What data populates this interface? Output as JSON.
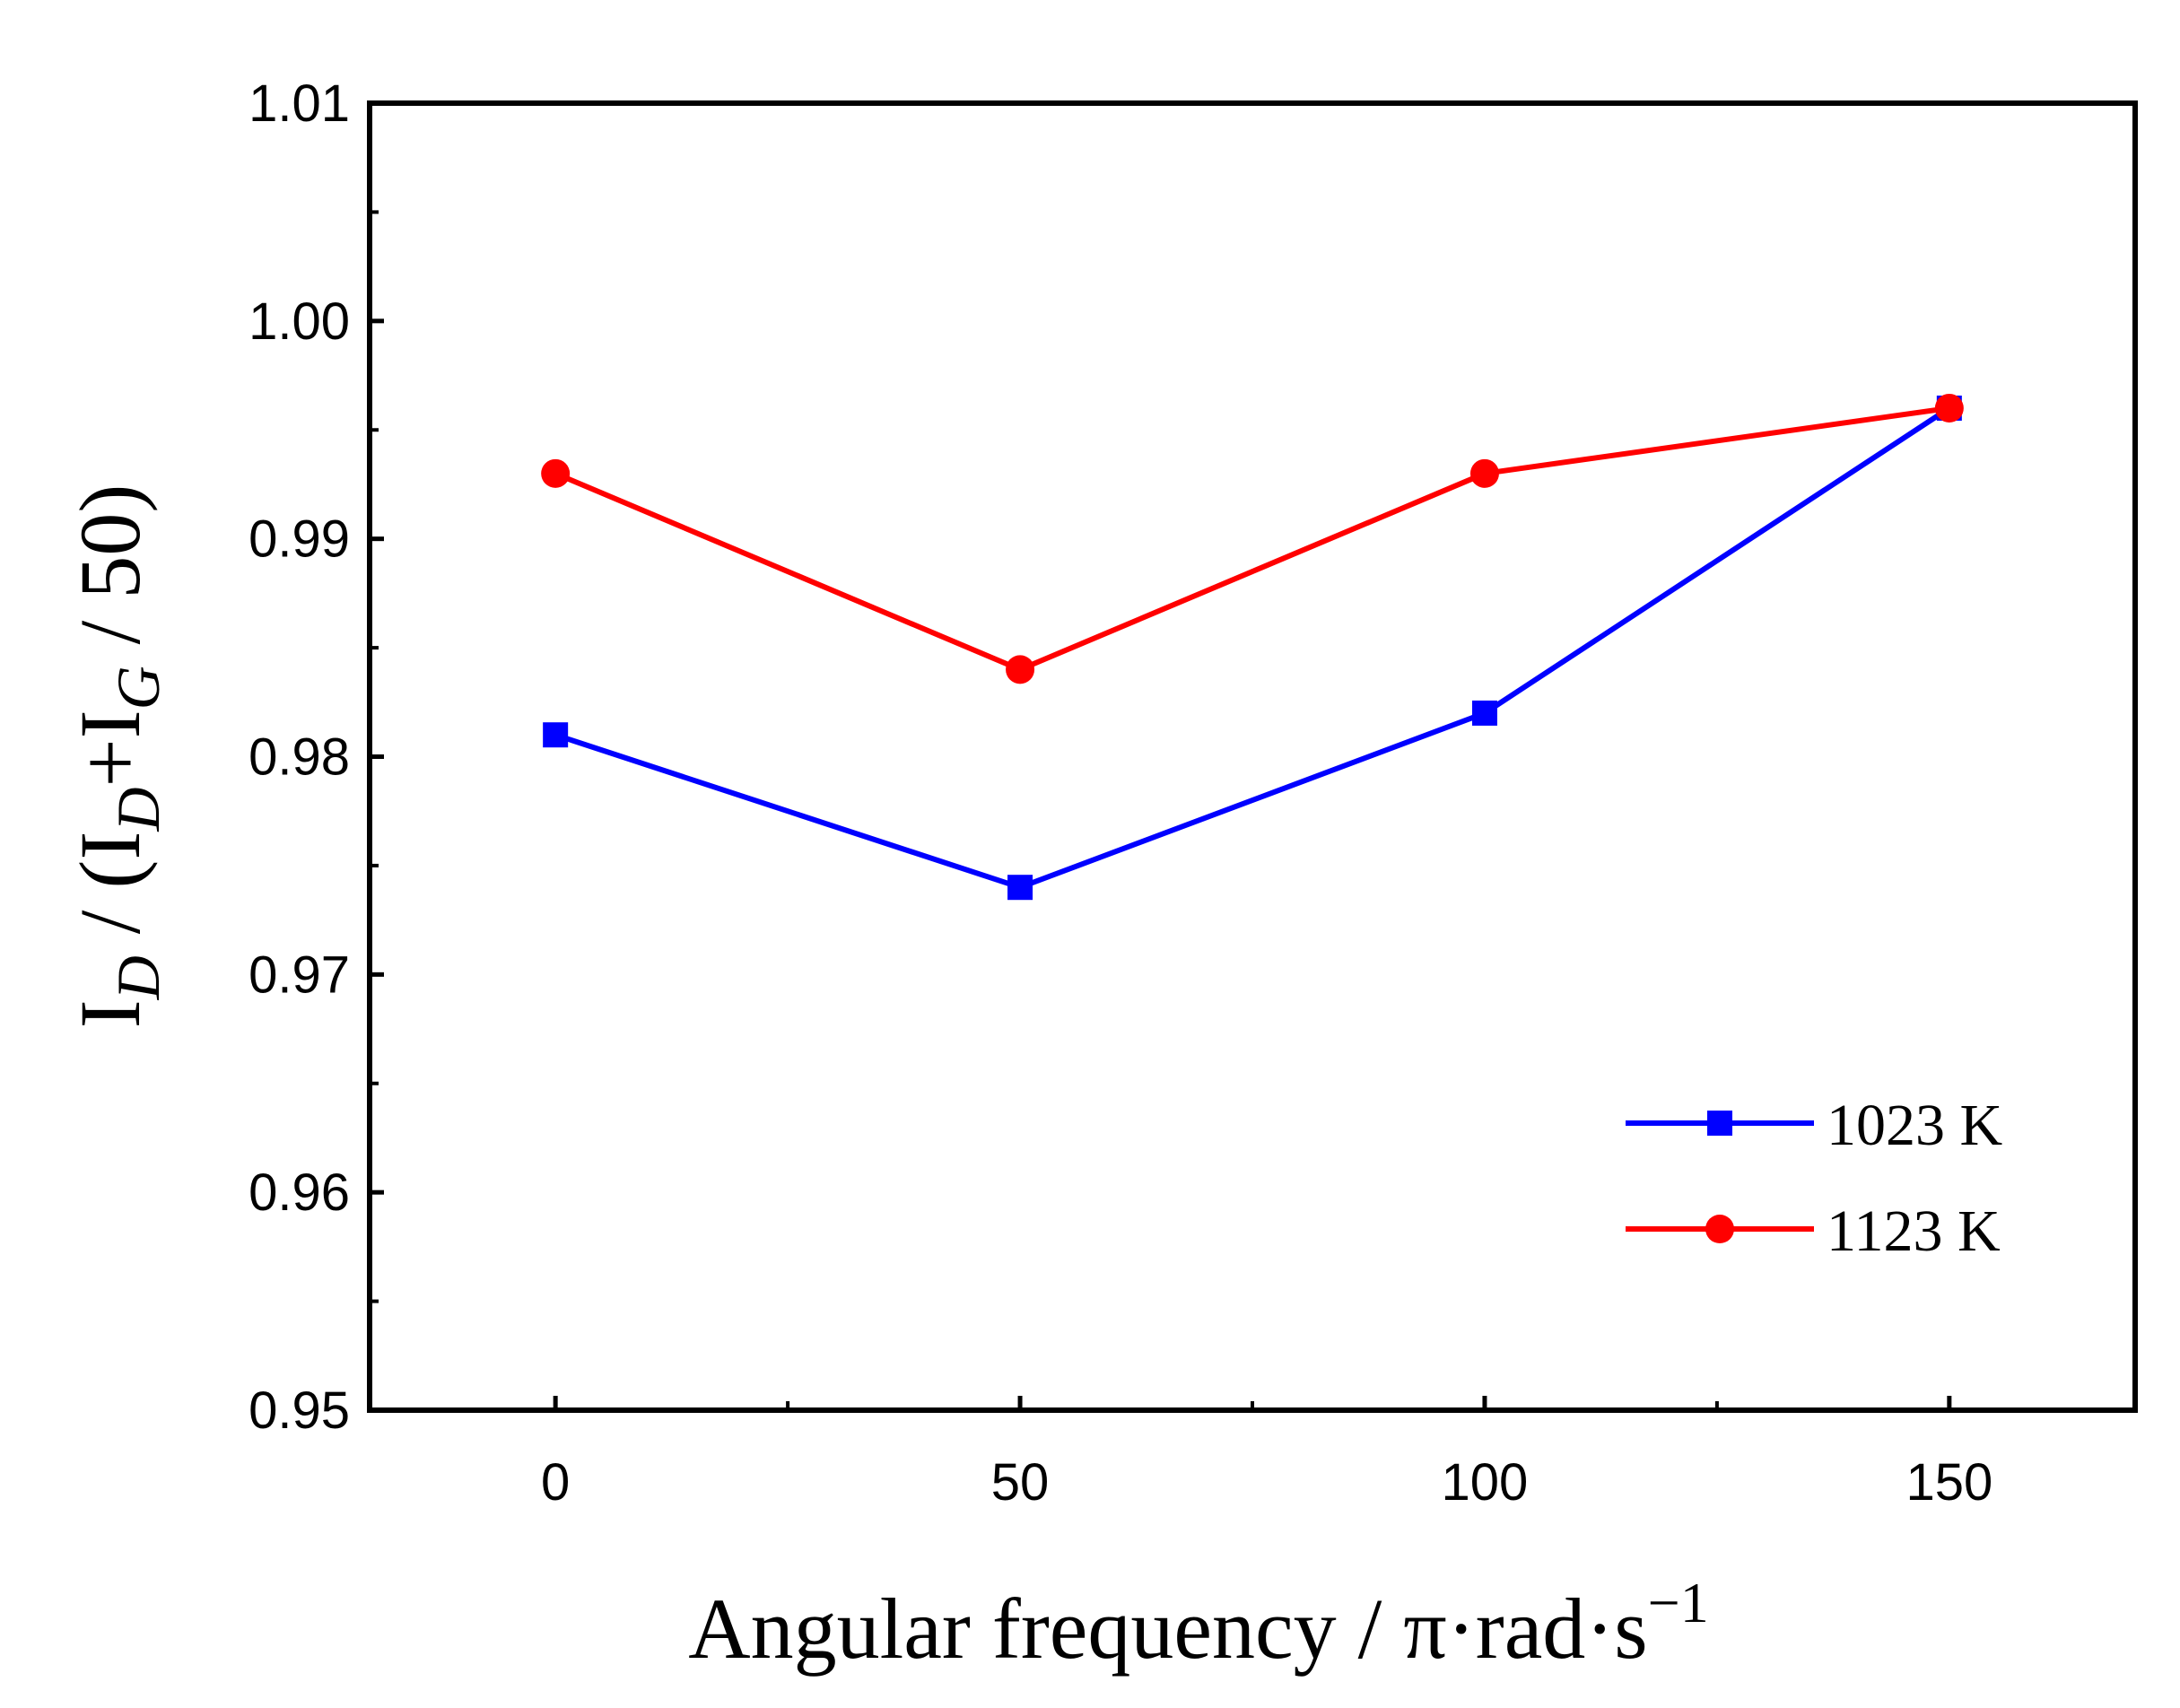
{
  "chart_data": {
    "type": "line",
    "x": [
      0,
      50,
      100,
      150
    ],
    "xlim": [
      -20,
      170
    ],
    "ylim": [
      0.95,
      1.01
    ],
    "x_ticks": [
      "0",
      "50",
      "100",
      "150"
    ],
    "y_ticks": [
      "0.95",
      "0.96",
      "0.97",
      "0.98",
      "0.99",
      "1.00",
      "1.01"
    ],
    "xlabel": {
      "main": "Angular frequency / π·rad·s",
      "sup": "−1"
    },
    "ylabel": {
      "p1": "I",
      "s1": "D",
      "p2": " / (I",
      "s2": "D",
      "p3": "+I",
      "s3": "G",
      "p4": " / 50)"
    },
    "legend_position": "bottom-right",
    "grid": false,
    "series": [
      {
        "name": "1023 K",
        "values": [
          0.981,
          0.974,
          0.982,
          0.996
        ],
        "color": "#0000ff",
        "marker": "square"
      },
      {
        "name": "1123 K",
        "values": [
          0.993,
          0.984,
          0.993,
          0.996
        ],
        "color": "#ff0000",
        "marker": "circle"
      }
    ]
  }
}
